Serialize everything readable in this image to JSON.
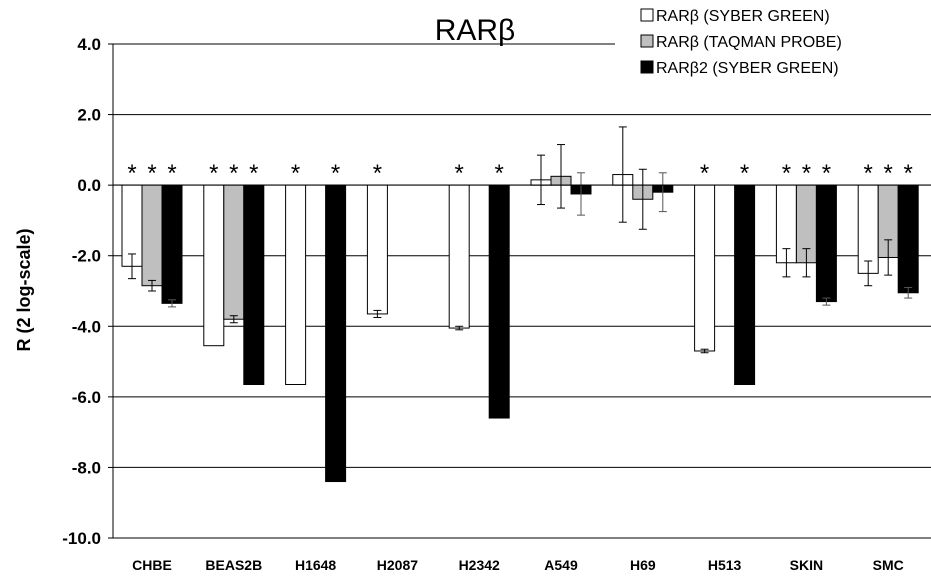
{
  "chart_data": {
    "type": "bar",
    "title": "RARβ",
    "xlabel": "",
    "ylabel": "R (2 log-scale)",
    "ylim": [
      -10,
      4
    ],
    "yticks": [
      "4.0",
      "2.0",
      "0.0",
      "-2.0",
      "-4.0",
      "-6.0",
      "-8.0",
      "-10.0"
    ],
    "grid": true,
    "legend_position": "top-right",
    "categories": [
      "CHBE",
      "BEAS2B",
      "H1648",
      "H2087",
      "H2342",
      "A549",
      "H69",
      "H513",
      "SKIN",
      "SMC"
    ],
    "series": [
      {
        "name": "RARβ (SYBER GREEN)",
        "color": "#ffffff",
        "values": [
          -2.3,
          -4.55,
          -5.65,
          -3.65,
          -4.05,
          0.15,
          0.3,
          -4.7,
          -2.2,
          -2.5
        ],
        "errors": [
          0.35,
          0.02,
          0.02,
          0.1,
          0.05,
          0.7,
          1.35,
          0.05,
          0.4,
          0.35
        ],
        "significant": [
          true,
          true,
          true,
          true,
          true,
          false,
          false,
          true,
          true,
          true
        ]
      },
      {
        "name": "RARβ (TAQMAN PROBE)",
        "color": "#bfbfbf",
        "values": [
          -2.85,
          -3.8,
          null,
          null,
          null,
          0.25,
          -0.4,
          null,
          -2.2,
          -2.05
        ],
        "errors": [
          0.15,
          0.1,
          null,
          null,
          null,
          0.9,
          0.85,
          null,
          0.4,
          0.5
        ],
        "significant": [
          true,
          true,
          false,
          false,
          false,
          false,
          false,
          false,
          true,
          true
        ]
      },
      {
        "name": "RARβ2 (SYBER GREEN)",
        "color": "#000000",
        "values": [
          -3.35,
          -5.65,
          -8.4,
          null,
          -6.6,
          -0.25,
          -0.2,
          -5.65,
          -3.3,
          -3.05
        ],
        "errors": [
          0.1,
          0.02,
          0.02,
          null,
          0.02,
          0.6,
          0.55,
          0.02,
          0.1,
          0.15
        ],
        "significant": [
          true,
          true,
          true,
          false,
          true,
          false,
          false,
          true,
          true,
          true
        ]
      }
    ],
    "significance_marker": "*"
  }
}
